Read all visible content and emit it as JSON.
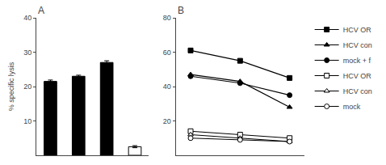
{
  "chart_data": [
    {
      "type": "bar",
      "title": "A",
      "categories": [
        null,
        null,
        null,
        null
      ],
      "values": [
        21.5,
        23.0,
        27.0,
        2.5
      ],
      "error_bars": [
        0.4,
        0.3,
        0.5,
        0.3
      ],
      "colors": [
        "black",
        "black",
        "black",
        "white"
      ],
      "ylabel": "% specific lysis",
      "ylim": [
        0,
        40
      ],
      "yticks": [
        10,
        20,
        30,
        40
      ],
      "grid": false,
      "tick_labels": "y"
    },
    {
      "type": "line",
      "title": "B",
      "x": [
        1,
        2,
        3
      ],
      "xlim": [
        0.7,
        3.3
      ],
      "series": [
        {
          "name": "HCV OR",
          "color": "black",
          "marker": "square",
          "values": [
            61,
            55,
            45
          ]
        },
        {
          "name": "HCV con",
          "color": "black",
          "marker": "triangle-up",
          "values": [
            47,
            43,
            28
          ]
        },
        {
          "name": "mock + f",
          "color": "black",
          "marker": "circle",
          "values": [
            46,
            42,
            35
          ]
        },
        {
          "name": "HCV OR",
          "color": "black",
          "marker": "square-open",
          "values": [
            14,
            12,
            10
          ]
        },
        {
          "name": "HCV con",
          "color": "black",
          "marker": "triangle-up-open",
          "values": [
            12,
            10,
            8
          ]
        },
        {
          "name": "mock",
          "color": "black",
          "marker": "circle-open",
          "values": [
            10,
            9,
            8
          ]
        }
      ],
      "ylim": [
        0,
        80
      ],
      "yticks": [
        20,
        40,
        60,
        80
      ],
      "grid": false,
      "tick_labels": "y",
      "legend": "right"
    }
  ]
}
